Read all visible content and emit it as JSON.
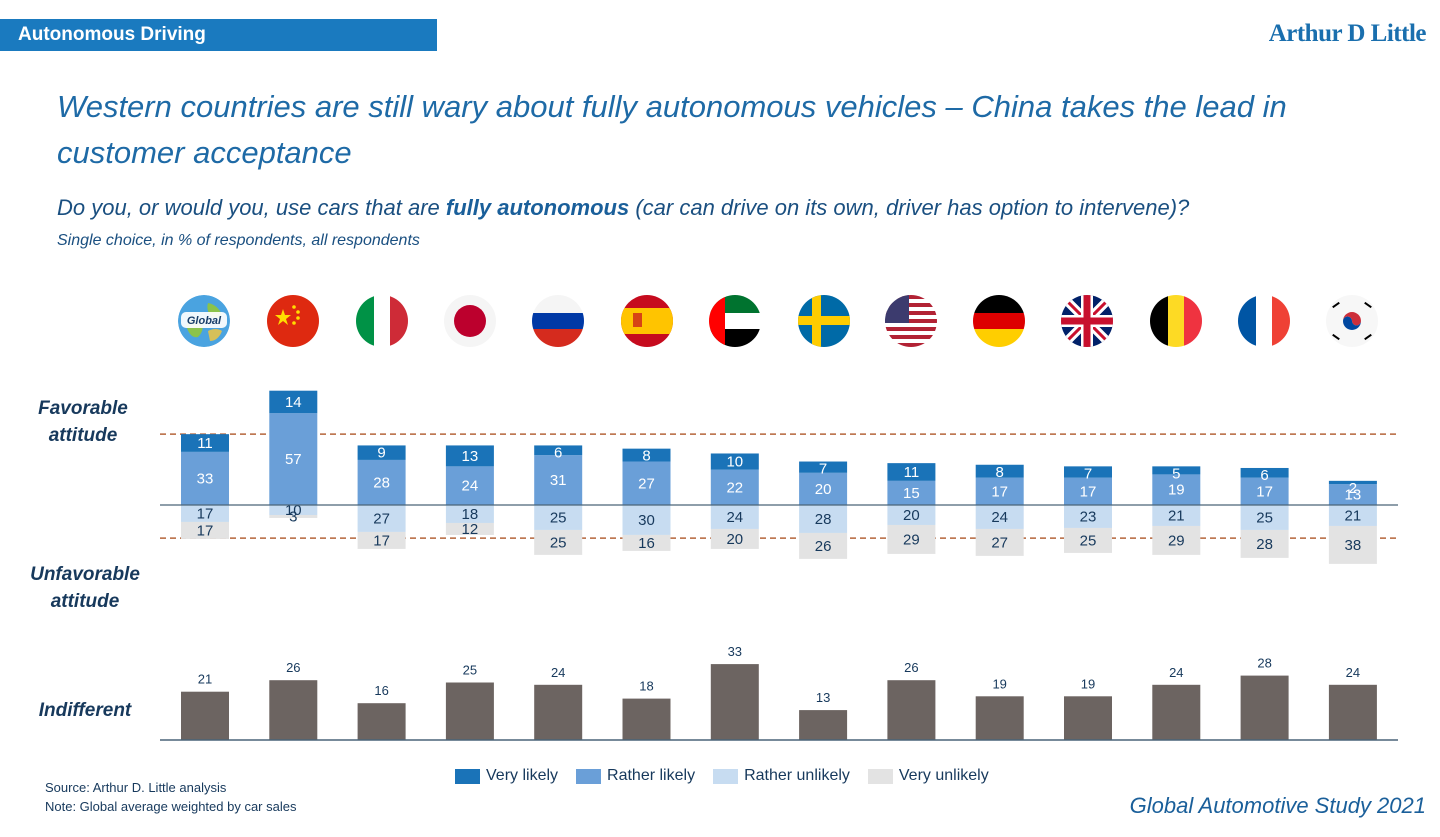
{
  "header": {
    "tag": "Autonomous Driving",
    "brand": "Arthur D Little",
    "headline": "Western countries are still wary about fully autonomous vehicles – China takes the lead in customer acceptance",
    "question_pre": "Do you, or would you, use cars that are",
    "question_bold": "fully autonomous",
    "question_post": "(car can drive on its own, driver has option to intervene)?",
    "subtitle": "Single choice, in % of respondents, all respondents"
  },
  "labels": {
    "favorable": "Favorable attitude",
    "unfavorable": "Unfavorable attitude",
    "indifferent": "Indifferent"
  },
  "chart_data": {
    "type": "bar",
    "subtype": "diverging stacked bar with separate indifferent bar row",
    "categories": [
      "Global",
      "China",
      "Italy",
      "Japan",
      "Russia",
      "Spain",
      "UAE",
      "Sweden",
      "USA",
      "Germany",
      "UK",
      "Belgium",
      "France",
      "South Korea"
    ],
    "global_flag_label": "Global",
    "series": [
      {
        "name": "Very likely",
        "color": "#1a73b8",
        "values": [
          11,
          14,
          9,
          13,
          6,
          8,
          10,
          7,
          11,
          8,
          7,
          5,
          6,
          2
        ]
      },
      {
        "name": "Rather likely",
        "color": "#6a9fd8",
        "values": [
          33,
          57,
          28,
          24,
          31,
          27,
          22,
          20,
          15,
          17,
          17,
          19,
          17,
          13
        ]
      },
      {
        "name": "Rather unlikely",
        "color": "#c7dcf1",
        "values": [
          17,
          10,
          27,
          18,
          25,
          30,
          24,
          28,
          20,
          24,
          23,
          21,
          25,
          21
        ]
      },
      {
        "name": "Very unlikely",
        "color": "#e3e3e3",
        "values": [
          17,
          3,
          17,
          12,
          25,
          16,
          20,
          26,
          29,
          27,
          25,
          29,
          28,
          38
        ]
      },
      {
        "name": "Indifferent",
        "color": "#6c6461",
        "values": [
          21,
          26,
          16,
          25,
          24,
          18,
          33,
          13,
          26,
          19,
          19,
          24,
          28,
          24
        ]
      }
    ],
    "legend": [
      "Very likely",
      "Rather likely",
      "Rather unlikely",
      "Very unlikely"
    ],
    "reference_lines": {
      "favorable_global": 44,
      "unfavorable_global": 34
    }
  },
  "footer": {
    "source": "Source: Arthur D. Little analysis",
    "note": "Note: Global average weighted by car sales",
    "study": "Global Automotive Study 2021"
  }
}
